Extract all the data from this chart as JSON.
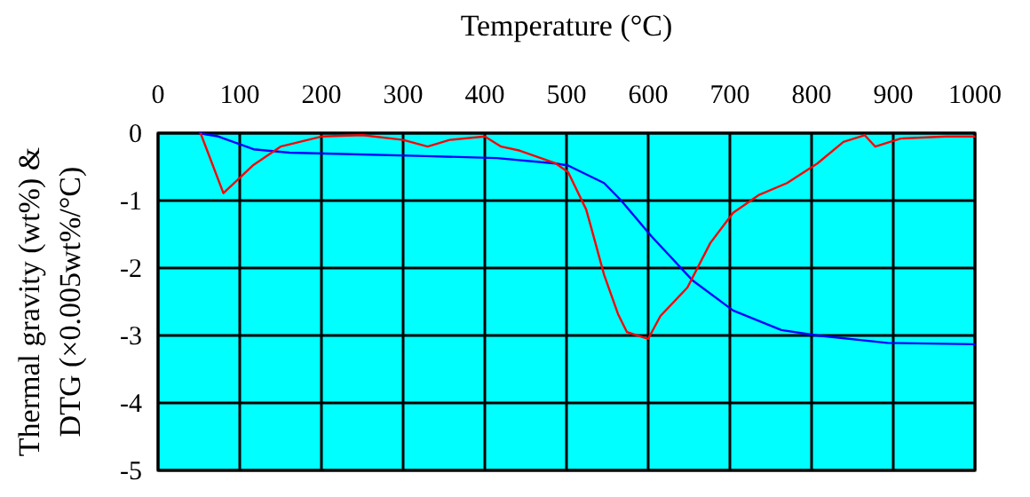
{
  "chart_data": {
    "type": "line",
    "title": "Temperature (°C)",
    "ylabel": "Thermal gravity (wt%) & DTG (×0.005wt%/°C)",
    "xlim": [
      0,
      1000
    ],
    "xticks": [
      0,
      100,
      200,
      300,
      400,
      500,
      600,
      700,
      800,
      900,
      1000
    ],
    "ylim": [
      -5,
      0
    ],
    "yticks": [
      0,
      -1,
      -2,
      -3,
      -4,
      -5
    ],
    "grid": true,
    "marker": "none",
    "line_style": "solid",
    "series": [
      {
        "color": "#0000ff",
        "x": [
          50,
          74,
          117,
          161,
          226,
          328,
          415,
          487,
          502,
          546,
          567,
          604,
          654,
          704,
          763,
          807,
          893,
          1000
        ],
        "values": [
          0,
          -0.05,
          -0.24,
          -0.29,
          -0.31,
          -0.34,
          -0.37,
          -0.45,
          -0.48,
          -0.74,
          -1.0,
          -1.53,
          -2.18,
          -2.63,
          -2.92,
          -3.0,
          -3.11,
          -3.13
        ]
      },
      {
        "color": "#ff0000",
        "x": [
          52,
          80,
          117,
          150,
          200,
          250,
          300,
          330,
          357,
          400,
          420,
          443,
          487,
          502,
          524,
          530,
          546,
          563,
          574,
          600,
          615,
          648,
          676,
          704,
          735,
          770,
          807,
          839,
          865,
          878,
          909,
          965,
          1000
        ],
        "values": [
          0,
          -0.89,
          -0.47,
          -0.2,
          -0.05,
          -0.03,
          -0.1,
          -0.2,
          -0.1,
          -0.05,
          -0.2,
          -0.26,
          -0.45,
          -0.58,
          -1.13,
          -1.39,
          -2.1,
          -2.68,
          -2.95,
          -3.05,
          -2.71,
          -2.29,
          -1.63,
          -1.18,
          -0.92,
          -0.74,
          -0.45,
          -0.13,
          -0.03,
          -0.2,
          -0.08,
          -0.05,
          -0.05
        ]
      }
    ]
  }
}
